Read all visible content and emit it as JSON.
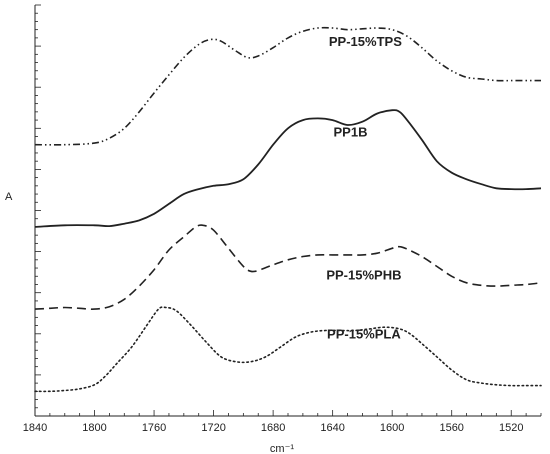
{
  "chart_data": {
    "type": "line",
    "title": "",
    "xlabel": "cm⁻¹",
    "ylabel": "A",
    "xlim": [
      1840,
      1500
    ],
    "x_reversed": true,
    "xticks": [
      1840,
      1800,
      1760,
      1720,
      1680,
      1640,
      1600,
      1560,
      1520
    ],
    "yticks_shown": false,
    "series": [
      {
        "name": "PP-15%TPS",
        "style": "dash-dot-dot",
        "color": "#222222",
        "points": [
          [
            1840,
            3.3
          ],
          [
            1820,
            3.3
          ],
          [
            1800,
            3.32
          ],
          [
            1790,
            3.38
          ],
          [
            1780,
            3.5
          ],
          [
            1770,
            3.7
          ],
          [
            1760,
            3.93
          ],
          [
            1750,
            4.15
          ],
          [
            1740,
            4.36
          ],
          [
            1730,
            4.52
          ],
          [
            1722,
            4.58
          ],
          [
            1715,
            4.56
          ],
          [
            1705,
            4.44
          ],
          [
            1697,
            4.36
          ],
          [
            1690,
            4.38
          ],
          [
            1680,
            4.48
          ],
          [
            1670,
            4.6
          ],
          [
            1660,
            4.68
          ],
          [
            1650,
            4.72
          ],
          [
            1640,
            4.72
          ],
          [
            1630,
            4.7
          ],
          [
            1620,
            4.71
          ],
          [
            1610,
            4.72
          ],
          [
            1600,
            4.7
          ],
          [
            1590,
            4.62
          ],
          [
            1580,
            4.48
          ],
          [
            1570,
            4.32
          ],
          [
            1560,
            4.2
          ],
          [
            1550,
            4.12
          ],
          [
            1540,
            4.1
          ],
          [
            1530,
            4.08
          ],
          [
            1520,
            4.08
          ],
          [
            1500,
            4.08
          ]
        ]
      },
      {
        "name": "PP1B",
        "style": "solid",
        "color": "#222222",
        "points": [
          [
            1840,
            2.3
          ],
          [
            1820,
            2.32
          ],
          [
            1800,
            2.32
          ],
          [
            1790,
            2.31
          ],
          [
            1780,
            2.34
          ],
          [
            1770,
            2.38
          ],
          [
            1760,
            2.46
          ],
          [
            1750,
            2.58
          ],
          [
            1740,
            2.7
          ],
          [
            1730,
            2.76
          ],
          [
            1720,
            2.8
          ],
          [
            1710,
            2.82
          ],
          [
            1700,
            2.88
          ],
          [
            1690,
            3.06
          ],
          [
            1680,
            3.3
          ],
          [
            1670,
            3.5
          ],
          [
            1660,
            3.6
          ],
          [
            1650,
            3.62
          ],
          [
            1640,
            3.6
          ],
          [
            1630,
            3.54
          ],
          [
            1620,
            3.58
          ],
          [
            1610,
            3.68
          ],
          [
            1600,
            3.72
          ],
          [
            1595,
            3.7
          ],
          [
            1590,
            3.6
          ],
          [
            1580,
            3.36
          ],
          [
            1570,
            3.1
          ],
          [
            1560,
            2.96
          ],
          [
            1550,
            2.88
          ],
          [
            1540,
            2.82
          ],
          [
            1530,
            2.77
          ],
          [
            1520,
            2.76
          ],
          [
            1510,
            2.76
          ],
          [
            1500,
            2.77
          ]
        ]
      },
      {
        "name": "PP-15%PHB",
        "style": "dashed",
        "color": "#222222",
        "points": [
          [
            1840,
            1.3
          ],
          [
            1830,
            1.31
          ],
          [
            1820,
            1.32
          ],
          [
            1810,
            1.31
          ],
          [
            1800,
            1.3
          ],
          [
            1790,
            1.33
          ],
          [
            1780,
            1.42
          ],
          [
            1770,
            1.58
          ],
          [
            1760,
            1.78
          ],
          [
            1750,
            2.02
          ],
          [
            1740,
            2.18
          ],
          [
            1732,
            2.3
          ],
          [
            1727,
            2.32
          ],
          [
            1720,
            2.26
          ],
          [
            1710,
            2.04
          ],
          [
            1700,
            1.82
          ],
          [
            1695,
            1.76
          ],
          [
            1690,
            1.77
          ],
          [
            1680,
            1.84
          ],
          [
            1670,
            1.9
          ],
          [
            1660,
            1.94
          ],
          [
            1650,
            1.96
          ],
          [
            1640,
            1.96
          ],
          [
            1630,
            1.96
          ],
          [
            1620,
            1.96
          ],
          [
            1610,
            1.98
          ],
          [
            1600,
            2.04
          ],
          [
            1595,
            2.06
          ],
          [
            1590,
            2.03
          ],
          [
            1580,
            1.94
          ],
          [
            1570,
            1.82
          ],
          [
            1560,
            1.7
          ],
          [
            1550,
            1.62
          ],
          [
            1540,
            1.59
          ],
          [
            1530,
            1.58
          ],
          [
            1520,
            1.59
          ],
          [
            1510,
            1.6
          ],
          [
            1500,
            1.62
          ]
        ]
      },
      {
        "name": "PP-15%PLA",
        "style": "dotted",
        "color": "#222222",
        "points": [
          [
            1840,
            0.3
          ],
          [
            1830,
            0.3
          ],
          [
            1820,
            0.31
          ],
          [
            1810,
            0.33
          ],
          [
            1800,
            0.38
          ],
          [
            1793,
            0.48
          ],
          [
            1785,
            0.64
          ],
          [
            1775,
            0.84
          ],
          [
            1765,
            1.1
          ],
          [
            1757,
            1.3
          ],
          [
            1752,
            1.32
          ],
          [
            1745,
            1.28
          ],
          [
            1735,
            1.1
          ],
          [
            1725,
            0.9
          ],
          [
            1715,
            0.72
          ],
          [
            1705,
            0.66
          ],
          [
            1695,
            0.66
          ],
          [
            1685,
            0.72
          ],
          [
            1675,
            0.84
          ],
          [
            1665,
            0.96
          ],
          [
            1655,
            1.02
          ],
          [
            1645,
            1.04
          ],
          [
            1635,
            1.04
          ],
          [
            1625,
            1.04
          ],
          [
            1615,
            1.06
          ],
          [
            1605,
            1.08
          ],
          [
            1595,
            1.06
          ],
          [
            1588,
            1.0
          ],
          [
            1580,
            0.88
          ],
          [
            1570,
            0.72
          ],
          [
            1560,
            0.56
          ],
          [
            1550,
            0.44
          ],
          [
            1540,
            0.4
          ],
          [
            1530,
            0.38
          ],
          [
            1520,
            0.37
          ],
          [
            1510,
            0.37
          ],
          [
            1500,
            0.37
          ]
        ]
      }
    ],
    "series_label_positions": {
      "PP-15%TPS": [
        1618,
        4.5
      ],
      "PP1B": [
        1628,
        3.4
      ],
      "PP-15%PHB": [
        1619,
        1.66
      ],
      "PP-15%PLA": [
        1619,
        0.94
      ]
    }
  }
}
